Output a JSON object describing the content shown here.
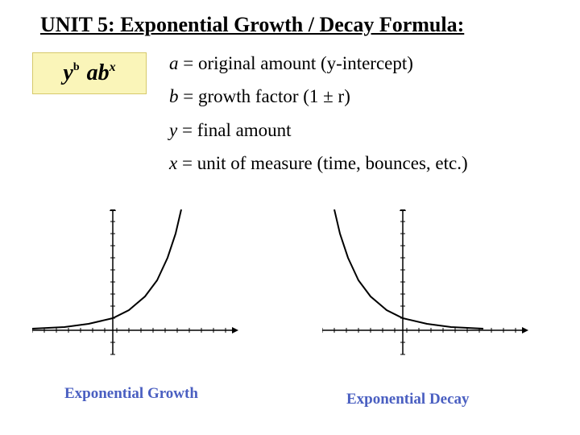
{
  "title": "UNIT 5: Exponential Growth / Decay Formula:",
  "formula": {
    "y": "y",
    "eq_sym": "b",
    "ab": "ab",
    "exp": "x",
    "box_bg": "#faf5b9",
    "box_border": "#d6c96b"
  },
  "definitions": [
    {
      "var": "a",
      "text": " = original amount (y-intercept)"
    },
    {
      "var": "b",
      "text": " = growth factor (1 ± r)"
    },
    {
      "var": "y",
      "text": " = final amount"
    },
    {
      "var": "x",
      "text": " = unit of measure (time, bounces, etc.)"
    }
  ],
  "charts": {
    "growth": {
      "label": "Exponential Growth",
      "type": "line",
      "axis_color": "#000000",
      "curve_color": "#000000",
      "line_width": 2,
      "origin_x": 100,
      "origin_y": 150,
      "x_range": [
        -100,
        150
      ],
      "y_range": [
        -30,
        150
      ],
      "tick_step": 15,
      "curve_points": [
        [
          -100,
          148
        ],
        [
          -60,
          146
        ],
        [
          -30,
          142
        ],
        [
          0,
          135
        ],
        [
          20,
          125
        ],
        [
          40,
          108
        ],
        [
          55,
          88
        ],
        [
          68,
          60
        ],
        [
          78,
          30
        ],
        [
          85,
          0
        ]
      ]
    },
    "decay": {
      "label": "Exponential Decay",
      "type": "line",
      "axis_color": "#000000",
      "curve_color": "#000000",
      "line_width": 2,
      "origin_x": 100,
      "origin_y": 150,
      "x_range": [
        -100,
        150
      ],
      "y_range": [
        -30,
        150
      ],
      "tick_step": 15,
      "curve_points": [
        [
          -85,
          0
        ],
        [
          -78,
          30
        ],
        [
          -68,
          60
        ],
        [
          -55,
          88
        ],
        [
          -40,
          108
        ],
        [
          -20,
          125
        ],
        [
          0,
          135
        ],
        [
          30,
          142
        ],
        [
          60,
          146
        ],
        [
          100,
          148
        ]
      ]
    },
    "label_color": "#4a5fc1"
  },
  "colors": {
    "background": "#ffffff",
    "text": "#000000"
  },
  "fonts": {
    "title_size": 26,
    "body_size": 23,
    "label_size": 19,
    "family": "Times New Roman"
  }
}
